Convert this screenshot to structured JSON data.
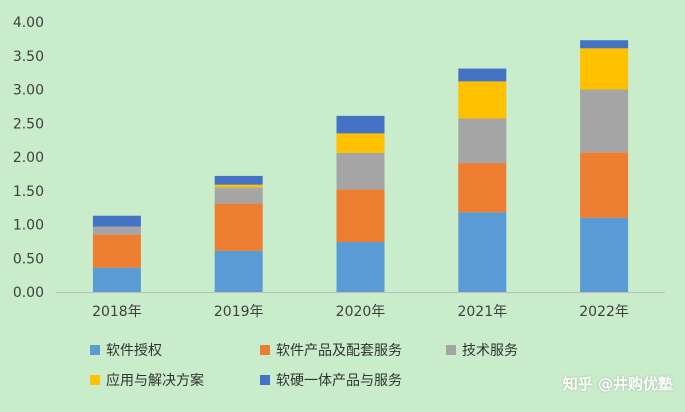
{
  "chart_data": {
    "type": "bar",
    "stacked": true,
    "categories": [
      "2018年",
      "2019年",
      "2020年",
      "2021年",
      "2022年"
    ],
    "y_ticks": [
      "0.00",
      "0.50",
      "1.00",
      "1.50",
      "2.00",
      "2.50",
      "3.00",
      "3.50",
      "4.00"
    ],
    "ylim": [
      0,
      4
    ],
    "grid": false,
    "legend_position": "bottom",
    "series": [
      {
        "name": "软件授权",
        "color": "#5b9bd5",
        "values": [
          0.36,
          0.61,
          0.74,
          1.18,
          1.1
        ]
      },
      {
        "name": "软件产品及配套服务",
        "color": "#ed7d31",
        "values": [
          0.49,
          0.7,
          0.78,
          0.73,
          0.97
        ]
      },
      {
        "name": "技术服务",
        "color": "#a5a5a5",
        "values": [
          0.12,
          0.24,
          0.54,
          0.66,
          0.93
        ]
      },
      {
        "name": "应用与解决方案",
        "color": "#ffc000",
        "values": [
          0.0,
          0.04,
          0.29,
          0.55,
          0.61
        ]
      },
      {
        "name": "软硬一体产品与服务",
        "color": "#4472c4",
        "values": [
          0.16,
          0.13,
          0.26,
          0.19,
          0.12
        ]
      }
    ]
  },
  "watermark": "知乎 @井购优塾"
}
